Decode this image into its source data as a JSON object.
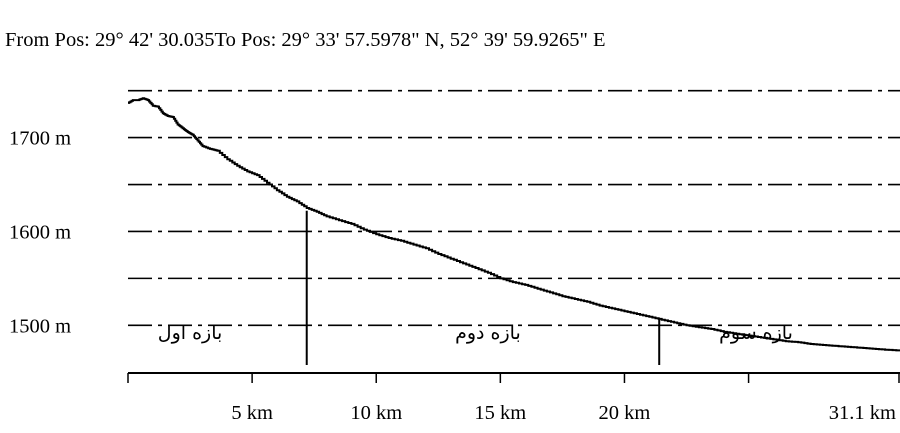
{
  "header": {
    "text": "From Pos: 29° 42' 30.035To Pos: 29° 33' 57.5978\" N, 52° 39' 59.9265\" E"
  },
  "chart_data": {
    "type": "line",
    "title": "",
    "xlabel": "",
    "ylabel": "",
    "x_unit": "km",
    "y_unit": "m",
    "xlim": [
      0,
      31.1
    ],
    "ylim": [
      1450,
      1755
    ],
    "grid": true,
    "x_ticks": [
      {
        "value": 5,
        "label": "5 km"
      },
      {
        "value": 10,
        "label": "10 km"
      },
      {
        "value": 15,
        "label": "15 km"
      },
      {
        "value": 20,
        "label": "20 km"
      },
      {
        "value": 31.1,
        "label": "31.1 km"
      }
    ],
    "x_minor_ticks": [
      0,
      25
    ],
    "y_ticks": [
      {
        "value": 1500,
        "label": "1500 m"
      },
      {
        "value": 1600,
        "label": "1600 m"
      },
      {
        "value": 1700,
        "label": "1700 m"
      }
    ],
    "y_gridlines": [
      1500,
      1550,
      1600,
      1650,
      1700,
      1750
    ],
    "series": [
      {
        "x": [
          0,
          0.2,
          0.4,
          0.6,
          0.8,
          1.0,
          1.2,
          1.4,
          1.6,
          1.8,
          2.0,
          2.2,
          2.4,
          2.6,
          2.8,
          3.0,
          3.3,
          3.6,
          4.0,
          4.4,
          4.8,
          5.2,
          5.6,
          6.0,
          6.4,
          6.8,
          7.2,
          7.6,
          8.0,
          8.5,
          9.0,
          9.5,
          10.0,
          10.5,
          11.0,
          11.5,
          12.0,
          12.5,
          13.0,
          13.5,
          14.0,
          14.5,
          15.0,
          15.5,
          16.0,
          16.5,
          17.0,
          17.5,
          18.0,
          18.5,
          19.0,
          19.5,
          20.0,
          20.5,
          21.0,
          21.5,
          22.0,
          22.5,
          23.0,
          23.5,
          24.0,
          24.5,
          25.0,
          25.5,
          26.0,
          26.5,
          27.0,
          27.5,
          28.0,
          28.5,
          29.0,
          29.5,
          30.0,
          30.5,
          31.1
        ],
        "y": [
          1737,
          1740,
          1740,
          1742,
          1740,
          1734,
          1733,
          1726,
          1723,
          1722,
          1714,
          1710,
          1706,
          1703,
          1697,
          1691,
          1688,
          1686,
          1677,
          1670,
          1664,
          1660,
          1652,
          1644,
          1637,
          1632,
          1625,
          1621,
          1616,
          1612,
          1608,
          1602,
          1597,
          1593,
          1590,
          1586,
          1582,
          1576,
          1571,
          1566,
          1561,
          1556,
          1550,
          1546,
          1543,
          1539,
          1535,
          1531,
          1528,
          1525,
          1521,
          1518,
          1515,
          1512,
          1509,
          1506,
          1503,
          1500,
          1498,
          1496,
          1493,
          1491,
          1489,
          1487,
          1485,
          1483,
          1482,
          1480,
          1479,
          1478,
          1477,
          1476,
          1475,
          1474,
          1473
        ]
      }
    ],
    "markers": [
      {
        "x": 7.2,
        "y": 1622
      },
      {
        "x": 21.4,
        "y": 1508
      }
    ],
    "annotations": [
      {
        "text": "بازه اول",
        "x": 2.5
      },
      {
        "text": "بازه دوم",
        "x": 14.5
      },
      {
        "text": "بازه سوم",
        "x": 25.3
      }
    ]
  }
}
